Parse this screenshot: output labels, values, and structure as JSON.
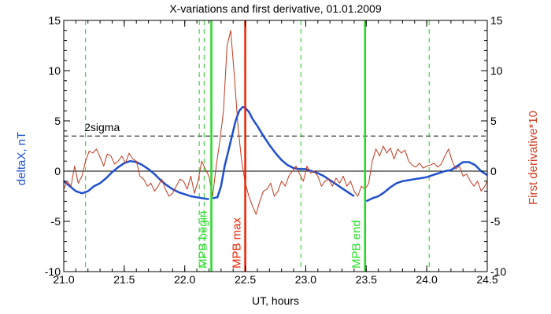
{
  "chart_data": {
    "type": "line",
    "title": "X-variations and first derivative, 01.01.2009",
    "xlabel": "UT, hours",
    "ylabel_left": "deltaX, nT",
    "ylabel_right": "First derivative*10",
    "xlim": [
      21.0,
      24.5
    ],
    "ylim_left": [
      -10,
      15
    ],
    "ylim_right": [
      -10,
      15
    ],
    "x_ticks": [
      "21.0",
      "21.5",
      "22.0",
      "22.5",
      "23.0",
      "23.5",
      "24.0",
      "24.5"
    ],
    "y_ticks_left": [
      "-10",
      "-5",
      "0",
      "5",
      "10",
      "15"
    ],
    "y_ticks_right": [
      "-10",
      "-5",
      "0",
      "5",
      "10",
      "15"
    ],
    "threshold": {
      "label": "2sigma",
      "value": 3.5
    },
    "zero_line": 0,
    "dashed_markers": [
      21.18,
      22.12,
      22.16,
      22.96,
      24.02
    ],
    "event_lines": [
      {
        "label": "MPB begin",
        "x": 22.22,
        "color": "#22dd22"
      },
      {
        "label": "MPB max",
        "x": 22.5,
        "color": "#ee2200"
      },
      {
        "label": "MPB end",
        "x": 23.49,
        "color": "#22dd22"
      }
    ],
    "series": [
      {
        "name": "deltaX, nT",
        "color": "#1f4fcf",
        "segments": [
          {
            "x": [
              21.0,
              21.05,
              21.1,
              21.15,
              21.2,
              21.25,
              21.3,
              21.35,
              21.4,
              21.45,
              21.5,
              21.55,
              21.6,
              21.65,
              21.7,
              21.75,
              21.8,
              21.85,
              21.9,
              21.95,
              22.0,
              22.05,
              22.1,
              22.15,
              22.2
            ],
            "y": [
              -1.0,
              -1.5,
              -2.0,
              -2.2,
              -2.0,
              -1.5,
              -1.2,
              -0.7,
              -0.1,
              0.4,
              0.8,
              1.0,
              0.9,
              0.6,
              0.2,
              -0.3,
              -0.9,
              -1.4,
              -1.8,
              -2.1,
              -2.3,
              -2.5,
              -2.6,
              -2.7,
              -2.8
            ]
          },
          {
            "x": [
              22.23,
              22.27,
              22.3,
              22.33,
              22.36,
              22.39,
              22.42,
              22.45,
              22.48,
              22.5,
              22.53,
              22.56,
              22.6,
              22.65,
              22.7,
              22.75,
              22.8,
              22.85,
              22.9,
              22.95,
              23.0,
              23.05,
              23.1,
              23.15,
              23.2,
              23.25,
              23.3,
              23.35,
              23.4
            ],
            "y": [
              -2.7,
              -2.6,
              -1.5,
              0.5,
              2.0,
              3.5,
              5.0,
              6.0,
              6.4,
              6.3,
              5.9,
              5.2,
              4.5,
              3.5,
              2.6,
              1.8,
              1.1,
              0.6,
              0.3,
              0.2,
              0.2,
              0.0,
              -0.2,
              -0.5,
              -0.9,
              -1.3,
              -1.7,
              -2.1,
              -2.5
            ]
          },
          {
            "x": [
              23.5,
              23.55,
              23.6,
              23.65,
              23.7,
              23.75,
              23.8,
              23.85,
              23.9,
              23.95,
              24.0,
              24.05,
              24.1,
              24.15,
              24.2,
              24.25,
              24.3,
              24.35,
              24.4,
              24.45,
              24.5
            ],
            "y": [
              -3.0,
              -2.7,
              -2.5,
              -2.1,
              -1.6,
              -1.2,
              -1.0,
              -0.9,
              -0.8,
              -0.7,
              -0.6,
              -0.4,
              -0.2,
              0.0,
              0.1,
              0.5,
              0.9,
              0.9,
              0.6,
              0.0,
              -0.4
            ]
          }
        ]
      },
      {
        "name": "First derivative*10",
        "color": "#c2391e",
        "segments": [
          {
            "x": [
              21.0,
              21.03,
              21.06,
              21.09,
              21.12,
              21.15,
              21.18,
              21.21,
              21.24,
              21.27,
              21.3,
              21.33,
              21.36,
              21.39,
              21.42,
              21.45,
              21.48,
              21.51,
              21.54,
              21.57,
              21.6,
              21.63,
              21.66,
              21.69,
              21.72,
              21.75,
              21.78,
              21.81,
              21.84,
              21.87,
              21.9,
              21.93,
              21.96,
              21.99,
              22.02,
              22.05,
              22.08,
              22.11,
              22.14,
              22.17,
              22.2,
              22.23,
              22.26,
              22.29,
              22.32,
              22.35,
              22.38,
              22.41,
              22.44,
              22.47,
              22.5,
              22.53,
              22.56,
              22.59,
              22.62,
              22.65,
              22.68,
              22.71,
              22.74,
              22.77,
              22.8,
              22.83,
              22.86,
              22.89,
              22.92,
              22.95,
              22.98,
              23.01,
              23.04,
              23.07,
              23.1,
              23.13,
              23.16,
              23.19,
              23.22,
              23.25,
              23.28,
              23.31,
              23.34,
              23.37,
              23.4,
              23.43,
              23.46,
              23.49,
              23.52,
              23.55,
              23.58,
              23.61,
              23.64,
              23.67,
              23.7,
              23.73,
              23.76,
              23.79,
              23.82,
              23.85,
              23.88,
              23.91,
              23.94,
              23.97,
              24.0,
              24.03,
              24.06,
              24.09,
              24.12,
              24.15,
              24.18,
              24.21,
              24.24,
              24.27,
              24.3,
              24.33,
              24.36,
              24.39,
              24.42,
              24.45,
              24.48,
              24.5
            ],
            "y": [
              -1.8,
              -1.0,
              -1.5,
              0.5,
              -1.2,
              -0.5,
              1.0,
              2.0,
              1.8,
              2.2,
              1.4,
              0.5,
              1.7,
              1.5,
              0.7,
              1.0,
              1.5,
              0.8,
              1.8,
              1.2,
              1.0,
              -0.5,
              -0.8,
              -1.5,
              -1.2,
              -2.0,
              -1.5,
              -0.8,
              -1.8,
              -2.5,
              -2.2,
              -1.5,
              -0.8,
              -1.0,
              -1.8,
              -0.5,
              -2.2,
              -1.0,
              1.0,
              0.2,
              -0.5,
              -2.5,
              0.5,
              3.0,
              6.0,
              12.5,
              14.0,
              9.5,
              4.5,
              1.0,
              -1.2,
              -2.5,
              -3.5,
              -4.3,
              -3.0,
              -2.0,
              -1.8,
              -1.2,
              -2.5,
              -2.0,
              -1.0,
              -1.5,
              -0.5,
              0.0,
              0.5,
              -0.3,
              -1.0,
              0.5,
              -0.2,
              0.0,
              -0.5,
              -1.5,
              -1.0,
              -0.8,
              -1.5,
              -0.7,
              -1.2,
              -0.5,
              -1.5,
              -1.0,
              -2.0,
              -2.5,
              -1.5,
              -1.8,
              -1.2,
              1.0,
              2.2,
              1.5,
              2.5,
              1.8,
              2.3,
              1.2,
              2.2,
              1.8,
              2.1,
              1.0,
              0.6,
              0.4,
              0.8,
              0.3,
              0.5,
              0.6,
              0.8,
              0.4,
              0.7,
              1.5,
              2.2,
              1.0,
              0.2,
              0.5,
              -0.5,
              -0.3,
              -1.0,
              -1.5,
              -1.0,
              -2.0,
              -1.5,
              -1.0
            ]
          }
        ]
      }
    ]
  }
}
